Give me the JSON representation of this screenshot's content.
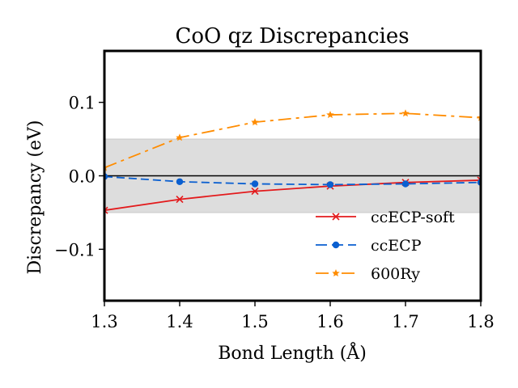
{
  "chart_data": {
    "type": "line",
    "title": "CoO qz Discrepancies",
    "xlabel": "Bond Length (Å)",
    "ylabel": "Discrepancy (eV)",
    "xlim": [
      1.3,
      1.8
    ],
    "ylim": [
      -0.17,
      0.17
    ],
    "xticks": [
      1.3,
      1.4,
      1.5,
      1.6,
      1.7,
      1.8
    ],
    "xtick_labels": [
      "1.3",
      "1.4",
      "1.5",
      "1.6",
      "1.7",
      "1.8"
    ],
    "yticks": [
      -0.1,
      0.0,
      0.1
    ],
    "ytick_labels": [
      "−0.1",
      "0.0",
      "0.1"
    ],
    "band": [
      -0.05,
      0.05
    ],
    "band_color": "#dddddd",
    "zero_line": 0.0,
    "grid": false,
    "legend_position": "lower-right",
    "series": [
      {
        "name": "ccECP-soft",
        "color": "#e31a1c",
        "marker": "x",
        "dash": "solid",
        "x": [
          1.3,
          1.4,
          1.5,
          1.6,
          1.7,
          1.8
        ],
        "y": [
          -0.047,
          -0.032,
          -0.021,
          -0.014,
          -0.009,
          -0.006
        ]
      },
      {
        "name": "ccECP",
        "color": "#0a5fd0",
        "marker": "circle",
        "dash": "dashed",
        "x": [
          1.3,
          1.4,
          1.5,
          1.6,
          1.7,
          1.8
        ],
        "y": [
          -0.001,
          -0.008,
          -0.011,
          -0.012,
          -0.011,
          -0.009
        ]
      },
      {
        "name": "600Ry",
        "color": "#ff8c00",
        "marker": "star",
        "dash": "longdash",
        "x": [
          1.3,
          1.4,
          1.5,
          1.6,
          1.7,
          1.8
        ],
        "y": [
          0.011,
          0.052,
          0.073,
          0.083,
          0.085,
          0.079
        ]
      }
    ]
  }
}
